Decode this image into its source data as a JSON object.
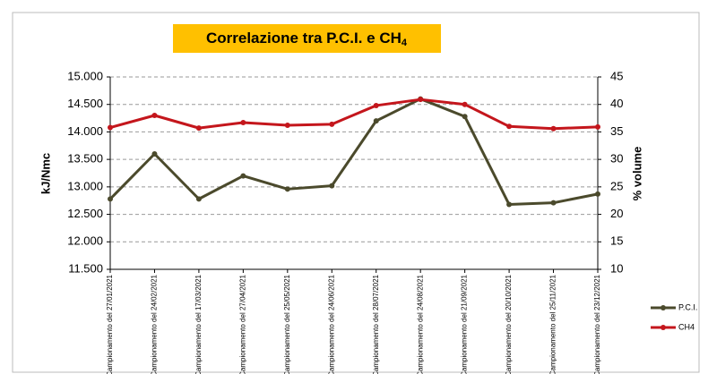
{
  "chart_data": {
    "type": "line",
    "title": "Correlazione tra P.C.I. e CH",
    "title_subscript": "4",
    "y_label": "kJ/Nmc",
    "y2_label": "% volume",
    "categories": [
      "Campionamento del 27/01/2021",
      "Campionamento del 24/02/2021",
      "Campionamento del 17/03/2021",
      "Campionamento del 27/04/2021",
      "Campionamento del 25/05/2021",
      "Campionamento del 24/06/2021",
      "Campionamento del 28/07/2021",
      "Campionamento del 24/08/2021",
      "Campionamento del 21/09/2021",
      "Campionamento del 20/10/2021",
      "Campionamento del 25/11/2021",
      "Campionamento del 23/12/2021"
    ],
    "series": [
      {
        "name": "P.C.I.",
        "color": "#4b4a2c",
        "values": [
          12780,
          13600,
          12780,
          13200,
          12960,
          13020,
          14200,
          14600,
          14280,
          12680,
          12710,
          12870
        ]
      },
      {
        "name": "CH4",
        "color": "#c4161c",
        "axis": "y2",
        "values": [
          35.8,
          38.0,
          35.7,
          36.7,
          36.2,
          36.4,
          39.8,
          40.9,
          40.0,
          36.0,
          35.6,
          35.9
        ]
      }
    ],
    "ylim": [
      11500,
      15000
    ],
    "yticks": [
      {
        "value": 11500,
        "label": "11.500"
      },
      {
        "value": 12000,
        "label": "12.000"
      },
      {
        "value": 12500,
        "label": "12.500"
      },
      {
        "value": 13000,
        "label": "13.000"
      },
      {
        "value": 13500,
        "label": "13.500"
      },
      {
        "value": 14000,
        "label": "14.000"
      },
      {
        "value": 14500,
        "label": "14.500"
      },
      {
        "value": 15000,
        "label": "15.000"
      }
    ],
    "y2lim": [
      10,
      45
    ],
    "y2ticks": [
      10,
      15,
      20,
      25,
      30,
      35,
      40,
      45
    ],
    "grid": true,
    "legend": "right"
  }
}
